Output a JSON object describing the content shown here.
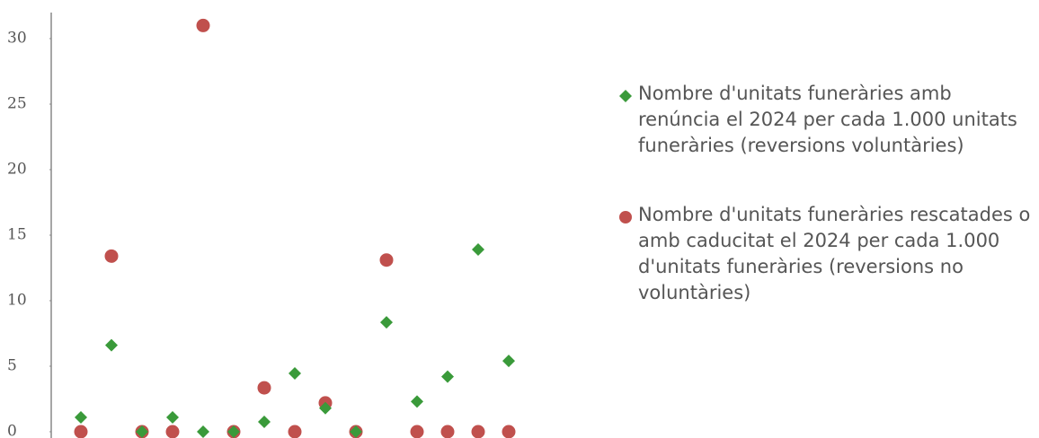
{
  "chart_data": {
    "type": "scatter",
    "categories": [
      null,
      null,
      null,
      null,
      null,
      null,
      null,
      null,
      null,
      null,
      null,
      null,
      null,
      null,
      null
    ],
    "series": [
      {
        "name": "Nombre d'unitats funeràries amb renúncia el 2024 per cada 1.000 unitats funeràries (reversions voluntàries)",
        "color": "#3a9a3a",
        "marker": "diamond",
        "values": [
          1.1,
          6.6,
          0,
          1.1,
          0,
          0,
          0.75,
          4.45,
          1.8,
          0,
          8.35,
          2.3,
          4.2,
          13.9,
          5.4
        ]
      },
      {
        "name": "Nombre d'unitats funeràries rescatades o amb caducitat el 2024 per cada 1.000 d'unitats funeràries (reversions no voluntàries)",
        "color": "#c0504d",
        "marker": "circle",
        "values": [
          0,
          13.4,
          0,
          0,
          31,
          0,
          3.35,
          0,
          2.2,
          0,
          13.1,
          0,
          0,
          0,
          0
        ]
      }
    ],
    "ylim": [
      0,
      32
    ],
    "yticks": [
      0,
      5,
      10,
      15,
      20,
      25,
      30
    ],
    "legend": "right"
  }
}
